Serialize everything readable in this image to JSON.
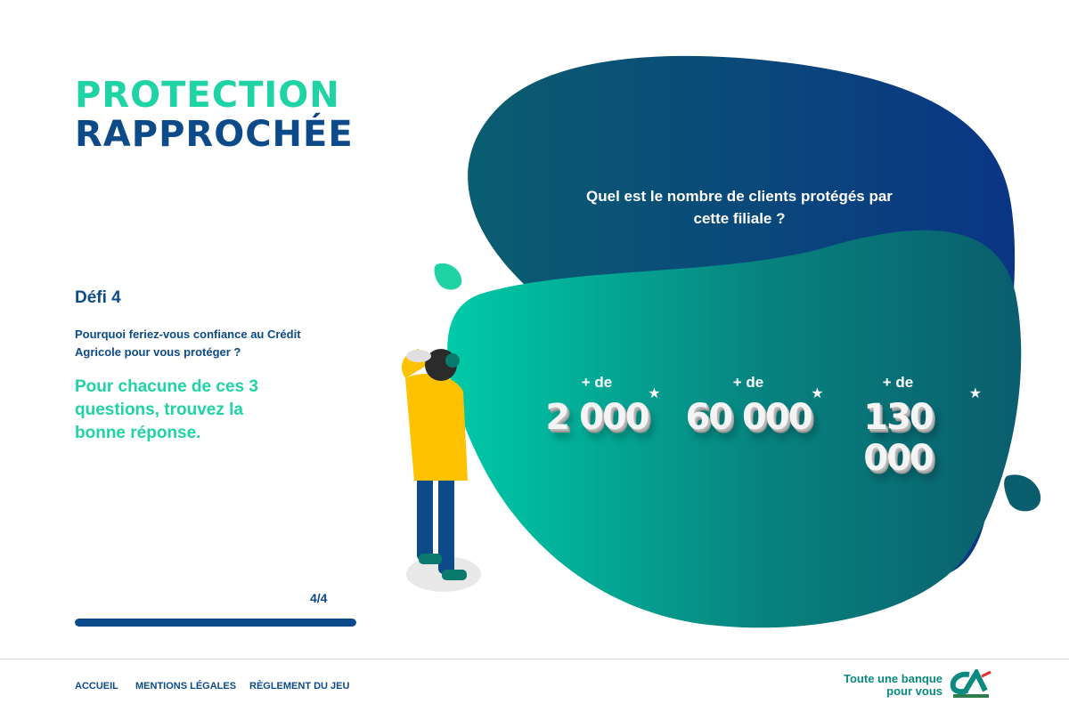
{
  "logo": {
    "line1": "PROTECTION",
    "line2": "RAPPROCHÉE"
  },
  "left": {
    "challenge_title": "Défi 4",
    "challenge_question": "Pourquoi feriez-vous confiance au Crédit Agricole pour vous protéger ?",
    "instruction": "Pour chacune de ces 3 questions, trouvez la bonne réponse.",
    "progress_label": "4/4",
    "progress_percent": 100
  },
  "quiz": {
    "question": "Quel est le nombre de clients protégés par cette filiale ?",
    "options": [
      {
        "prefix": "+ de",
        "value": "2 000"
      },
      {
        "prefix": "+ de",
        "value": "60 000"
      },
      {
        "prefix": "+ de",
        "value": "130 000"
      }
    ]
  },
  "footer": {
    "links": [
      "ACCUEIL",
      "MENTIONS LÉGALES",
      "RÈGLEMENT DU JEU"
    ],
    "tagline_line1": "Toute une banque",
    "tagline_line2": "pour vous",
    "brand_logo": "CA"
  },
  "colors": {
    "navy": "#0d4a8a",
    "mint": "#1fd3a5",
    "teal_dark": "#0a5f6e"
  }
}
